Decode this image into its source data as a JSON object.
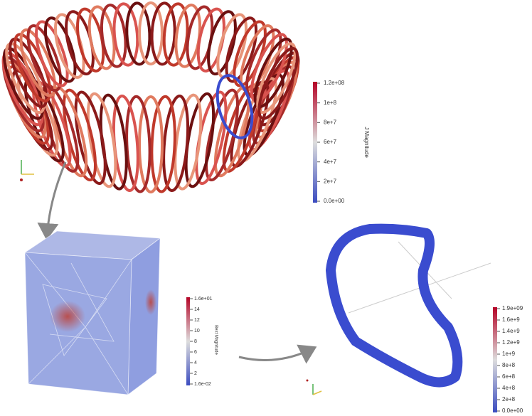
{
  "panels": [
    {
      "colorbar": {
        "title": "J Magnitude",
        "labels": [
          "1.2e+08",
          "1e+8",
          "8e+7",
          "6e+7",
          "4e+7",
          "2e+7",
          "0.0e+00"
        ]
      }
    },
    {
      "colorbar": {
        "title": "Bext Magnitude",
        "labels": [
          "1.6e+01",
          "14",
          "12",
          "10",
          "8",
          "6",
          "4",
          "2",
          "1.6e-02"
        ]
      }
    },
    {
      "colorbar": {
        "title": "",
        "labels": [
          "1.9e+09",
          "1.6e+9",
          "1.4e+9",
          "1.2e+9",
          "1e+9",
          "8e+8",
          "6e+8",
          "4e+8",
          "2e+8",
          "0.0e+00"
        ]
      }
    }
  ]
}
